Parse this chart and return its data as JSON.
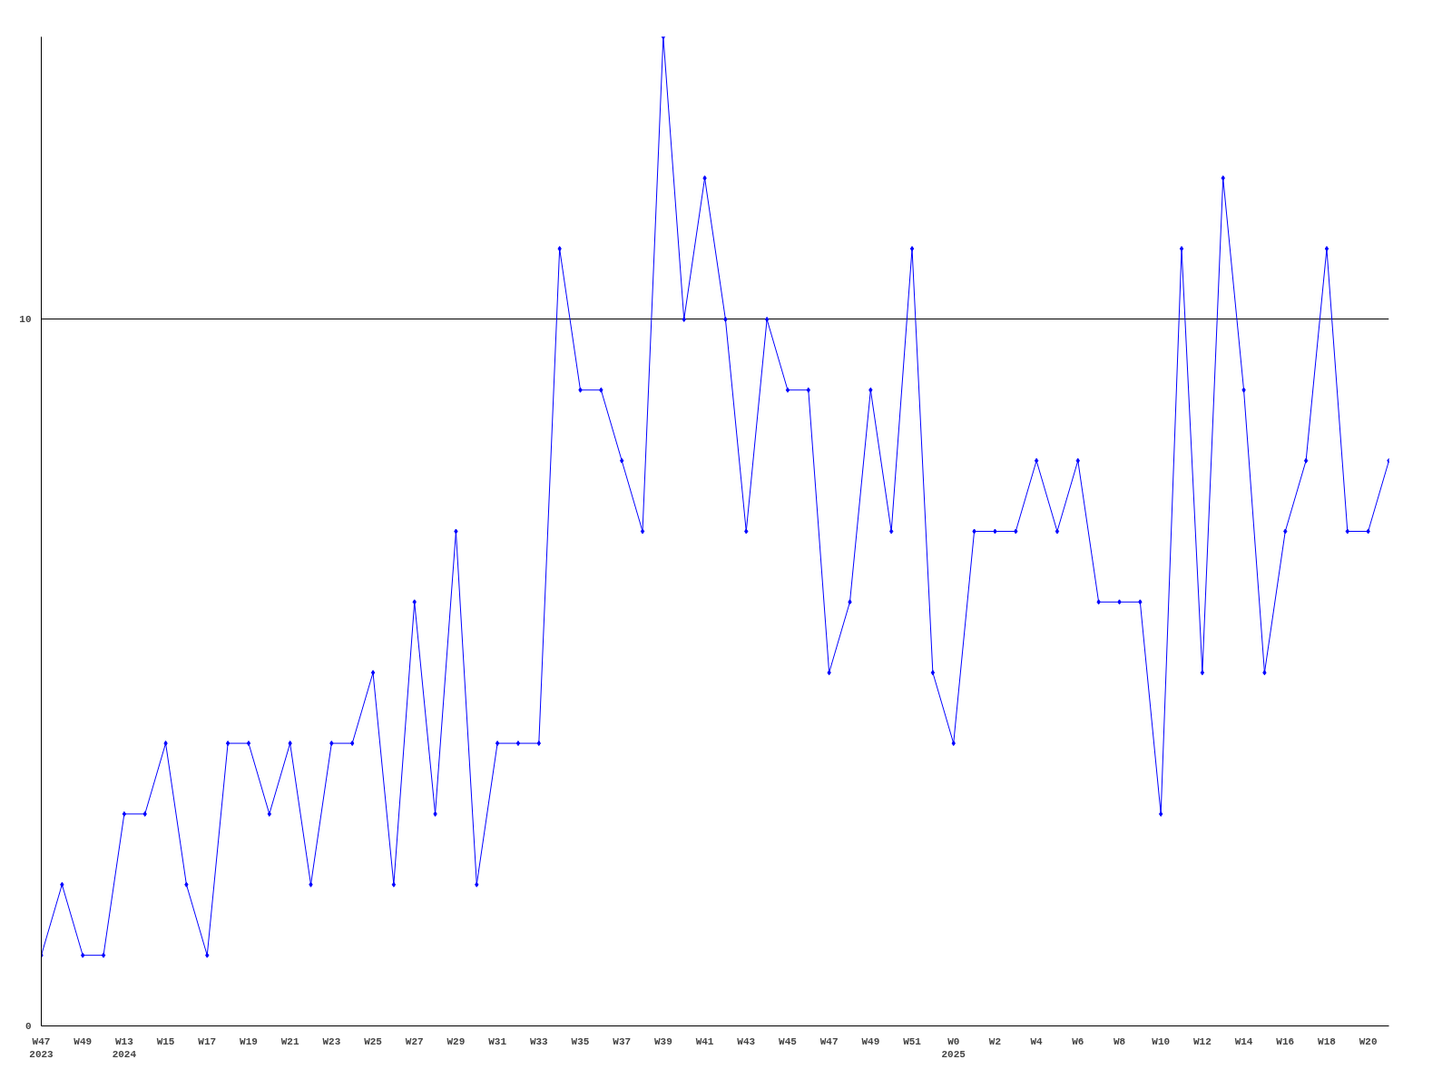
{
  "chart_data": {
    "type": "line",
    "categories": [
      "W47\n2023",
      null,
      "W49",
      null,
      "W13\n2024",
      null,
      "W15",
      null,
      "W17",
      null,
      "W19",
      null,
      "W21",
      null,
      "W23",
      null,
      "W25",
      null,
      "W27",
      null,
      "W29",
      null,
      "W31",
      null,
      "W33",
      null,
      "W35",
      null,
      "W37",
      null,
      "W39",
      null,
      "W41",
      null,
      "W43",
      null,
      "W45",
      null,
      "W47",
      null,
      "W49",
      null,
      "W51",
      null,
      "W0\n2025",
      null,
      "W2",
      null,
      "W4",
      null,
      "W6",
      null,
      "W8",
      null,
      "W10",
      null,
      "W12",
      null,
      "W14",
      null,
      "W16",
      null,
      "W18",
      null,
      "W20",
      null
    ],
    "series": [
      {
        "color": "#0000ff",
        "values": [
          1,
          2,
          1,
          1,
          3,
          3,
          4,
          2,
          1,
          4,
          4,
          3,
          4,
          2,
          4,
          4,
          5,
          2,
          6,
          3,
          7,
          2,
          4,
          4,
          4,
          11,
          9,
          9,
          8,
          7,
          14,
          10,
          12,
          10,
          7,
          10,
          9,
          9,
          5,
          6,
          9,
          7,
          11,
          5,
          4,
          7,
          7,
          7,
          8,
          7,
          8,
          6,
          6,
          6,
          3,
          11,
          5,
          12,
          9,
          5,
          7,
          8,
          11,
          7,
          7,
          8
        ]
      }
    ],
    "ylim": [
      0,
      14
    ],
    "yticks": [
      0,
      10
    ],
    "grid": "y",
    "marker": "diamond",
    "line_style": "solid"
  }
}
